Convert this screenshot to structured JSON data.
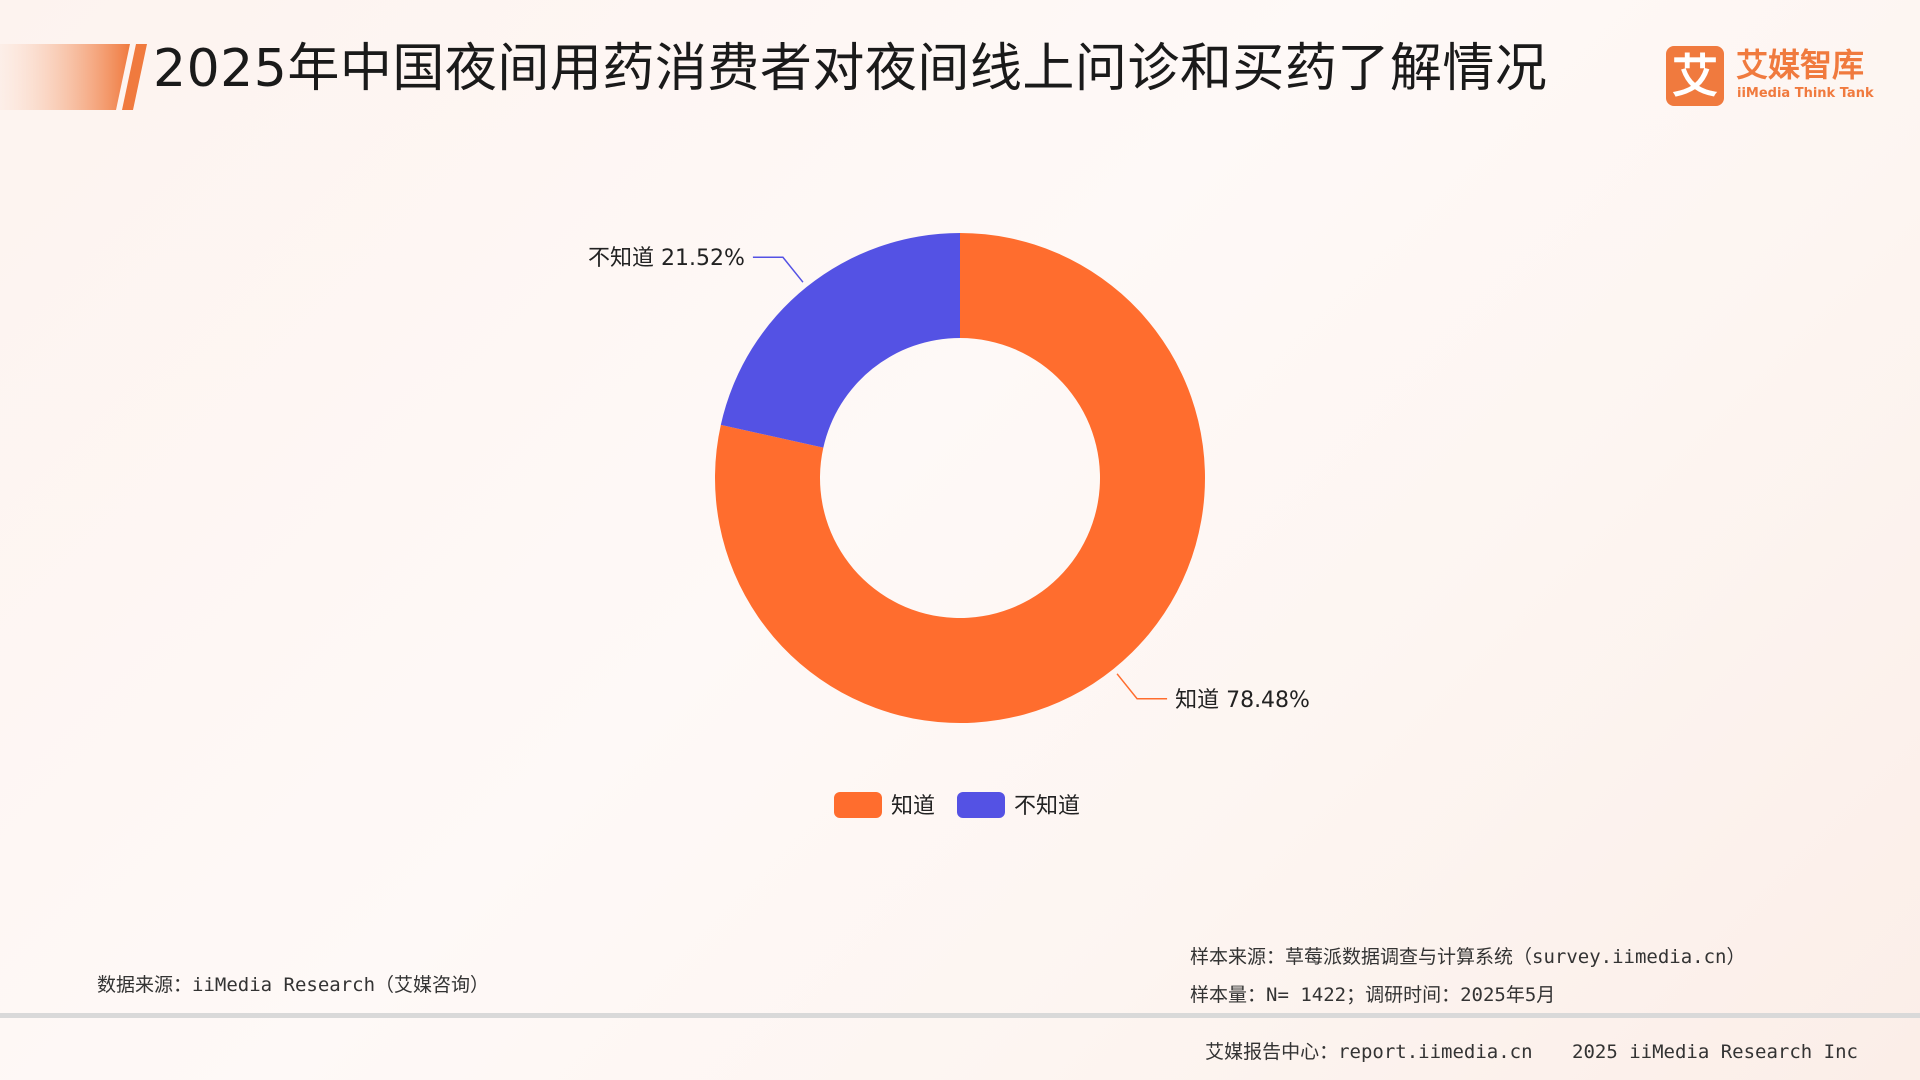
{
  "header": {
    "title": "2025年中国夜间用药消费者对夜间线上问诊和买药了解情况"
  },
  "logo": {
    "mark": "艾",
    "name_cn": "艾媒智库",
    "name_en": "iiMedia Think Tank",
    "color": "#f07a3e"
  },
  "chart_data": {
    "type": "pie",
    "style": "donut",
    "title": "",
    "categories": [
      "知道",
      "不知道"
    ],
    "values": [
      78.48,
      21.52
    ],
    "unit": "%",
    "data_labels": [
      "知道 78.48%",
      "不知道 21.52%"
    ],
    "colors": [
      "#ff6d2e",
      "#5452e4"
    ],
    "legend": {
      "position": "bottom-center",
      "entries": [
        "知道",
        "不知道"
      ]
    }
  },
  "footer": {
    "data_source": "数据来源：iiMedia Research（艾媒咨询）",
    "sample_source": "样本来源：草莓派数据调查与计算系统（survey.iimedia.cn）",
    "sample_size": "样本量：N= 1422；调研时间：2025年5月",
    "report_center": "艾媒报告中心：report.iimedia.cn",
    "copyright": "2025 iiMedia Research Inc"
  }
}
